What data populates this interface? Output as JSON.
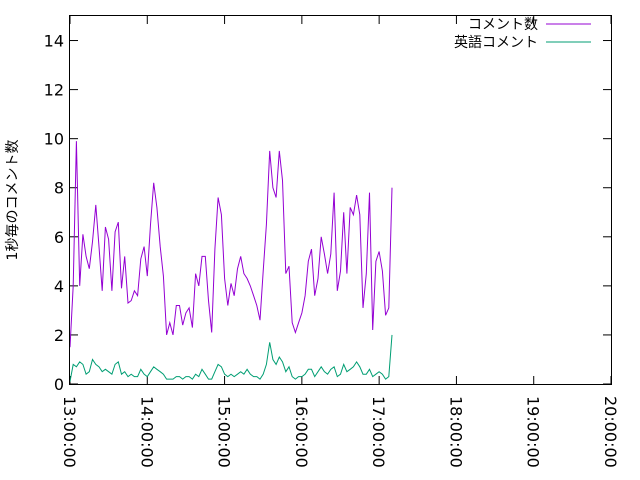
{
  "chart_data": {
    "type": "line",
    "ylabel": "1秒毎のコメント数",
    "xlabel": "",
    "ylim": [
      0,
      15
    ],
    "xlim": [
      "13:00:00",
      "20:00:00"
    ],
    "y_ticks": [
      "0",
      "2",
      "4",
      "6",
      "8",
      "10",
      "12",
      "14"
    ],
    "x_ticks": [
      "13:00:00",
      "14:00:00",
      "15:00:00",
      "16:00:00",
      "17:00:00",
      "18:00:00",
      "19:00:00",
      "20:00:00"
    ],
    "legend_position": "top-right",
    "grid": false,
    "series": [
      {
        "name": "コメント数",
        "color": "#9400d3",
        "points": [
          [
            "13:00:00",
            1.5
          ],
          [
            "13:02:30",
            4.0
          ],
          [
            "13:05:00",
            9.9
          ],
          [
            "13:07:30",
            4.0
          ],
          [
            "13:10:00",
            6.1
          ],
          [
            "13:12:30",
            5.2
          ],
          [
            "13:15:00",
            4.7
          ],
          [
            "13:17:30",
            5.8
          ],
          [
            "13:20:00",
            7.3
          ],
          [
            "13:22:30",
            5.6
          ],
          [
            "13:25:00",
            3.8
          ],
          [
            "13:27:30",
            6.4
          ],
          [
            "13:30:00",
            5.9
          ],
          [
            "13:32:30",
            3.8
          ],
          [
            "13:35:00",
            6.2
          ],
          [
            "13:37:30",
            6.6
          ],
          [
            "13:40:00",
            3.9
          ],
          [
            "13:42:30",
            5.2
          ],
          [
            "13:45:00",
            3.3
          ],
          [
            "13:47:30",
            3.4
          ],
          [
            "13:50:00",
            3.8
          ],
          [
            "13:52:30",
            3.6
          ],
          [
            "13:55:00",
            5.1
          ],
          [
            "13:57:30",
            5.6
          ],
          [
            "14:00:00",
            4.4
          ],
          [
            "14:02:30",
            6.5
          ],
          [
            "14:05:00",
            8.2
          ],
          [
            "14:07:30",
            7.2
          ],
          [
            "14:10:00",
            5.6
          ],
          [
            "14:12:30",
            4.4
          ],
          [
            "14:15:00",
            2.0
          ],
          [
            "14:17:30",
            2.5
          ],
          [
            "14:20:00",
            2.0
          ],
          [
            "14:22:30",
            3.2
          ],
          [
            "14:25:00",
            3.2
          ],
          [
            "14:27:30",
            2.4
          ],
          [
            "14:30:00",
            2.9
          ],
          [
            "14:32:30",
            3.1
          ],
          [
            "14:35:00",
            2.3
          ],
          [
            "14:37:30",
            4.5
          ],
          [
            "14:40:00",
            4.0
          ],
          [
            "14:42:30",
            5.2
          ],
          [
            "14:45:00",
            5.2
          ],
          [
            "14:47:30",
            3.4
          ],
          [
            "14:50:00",
            2.1
          ],
          [
            "14:52:30",
            5.5
          ],
          [
            "14:55:00",
            7.6
          ],
          [
            "14:57:30",
            6.9
          ],
          [
            "15:00:00",
            4.3
          ],
          [
            "15:02:30",
            3.2
          ],
          [
            "15:05:00",
            4.1
          ],
          [
            "15:07:30",
            3.6
          ],
          [
            "15:10:00",
            4.7
          ],
          [
            "15:12:30",
            5.2
          ],
          [
            "15:15:00",
            4.5
          ],
          [
            "15:17:30",
            4.3
          ],
          [
            "15:20:00",
            4.0
          ],
          [
            "15:22:30",
            3.6
          ],
          [
            "15:25:00",
            3.2
          ],
          [
            "15:27:30",
            2.6
          ],
          [
            "15:30:00",
            4.6
          ],
          [
            "15:32:30",
            6.5
          ],
          [
            "15:35:00",
            9.5
          ],
          [
            "15:37:30",
            8.0
          ],
          [
            "15:40:00",
            7.6
          ],
          [
            "15:42:30",
            9.5
          ],
          [
            "15:45:00",
            8.3
          ],
          [
            "15:47:30",
            4.5
          ],
          [
            "15:50:00",
            4.8
          ],
          [
            "15:52:30",
            2.5
          ],
          [
            "15:55:00",
            2.1
          ],
          [
            "15:57:30",
            2.5
          ],
          [
            "16:00:00",
            2.9
          ],
          [
            "16:02:30",
            3.6
          ],
          [
            "16:05:00",
            5.0
          ],
          [
            "16:07:30",
            5.5
          ],
          [
            "16:10:00",
            3.6
          ],
          [
            "16:12:30",
            4.3
          ],
          [
            "16:15:00",
            6.0
          ],
          [
            "16:17:30",
            5.3
          ],
          [
            "16:20:00",
            4.5
          ],
          [
            "16:22:30",
            5.3
          ],
          [
            "16:25:00",
            7.8
          ],
          [
            "16:27:30",
            3.8
          ],
          [
            "16:30:00",
            4.6
          ],
          [
            "16:32:30",
            7.0
          ],
          [
            "16:35:00",
            4.5
          ],
          [
            "16:37:30",
            7.2
          ],
          [
            "16:40:00",
            6.9
          ],
          [
            "16:42:30",
            7.7
          ],
          [
            "16:45:00",
            6.9
          ],
          [
            "16:47:30",
            3.1
          ],
          [
            "16:50:00",
            4.5
          ],
          [
            "16:52:30",
            7.8
          ],
          [
            "16:55:00",
            2.2
          ],
          [
            "16:57:30",
            5.0
          ],
          [
            "17:00:00",
            5.4
          ],
          [
            "17:02:30",
            4.6
          ],
          [
            "17:05:00",
            2.8
          ],
          [
            "17:07:30",
            3.1
          ],
          [
            "17:10:00",
            8.0
          ]
        ]
      },
      {
        "name": "英語コメント",
        "color": "#009e73",
        "points": [
          [
            "13:00:00",
            0.1
          ],
          [
            "13:02:30",
            0.8
          ],
          [
            "13:05:00",
            0.7
          ],
          [
            "13:07:30",
            0.9
          ],
          [
            "13:10:00",
            0.8
          ],
          [
            "13:12:30",
            0.4
          ],
          [
            "13:15:00",
            0.5
          ],
          [
            "13:17:30",
            1.0
          ],
          [
            "13:20:00",
            0.8
          ],
          [
            "13:22:30",
            0.7
          ],
          [
            "13:25:00",
            0.5
          ],
          [
            "13:27:30",
            0.6
          ],
          [
            "13:30:00",
            0.5
          ],
          [
            "13:32:30",
            0.4
          ],
          [
            "13:35:00",
            0.8
          ],
          [
            "13:37:30",
            0.9
          ],
          [
            "13:40:00",
            0.4
          ],
          [
            "13:42:30",
            0.5
          ],
          [
            "13:45:00",
            0.3
          ],
          [
            "13:47:30",
            0.4
          ],
          [
            "13:50:00",
            0.3
          ],
          [
            "13:52:30",
            0.3
          ],
          [
            "13:55:00",
            0.6
          ],
          [
            "13:57:30",
            0.4
          ],
          [
            "14:00:00",
            0.3
          ],
          [
            "14:02:30",
            0.5
          ],
          [
            "14:05:00",
            0.7
          ],
          [
            "14:07:30",
            0.6
          ],
          [
            "14:10:00",
            0.5
          ],
          [
            "14:12:30",
            0.4
          ],
          [
            "14:15:00",
            0.2
          ],
          [
            "14:17:30",
            0.2
          ],
          [
            "14:20:00",
            0.2
          ],
          [
            "14:22:30",
            0.3
          ],
          [
            "14:25:00",
            0.3
          ],
          [
            "14:27:30",
            0.2
          ],
          [
            "14:30:00",
            0.3
          ],
          [
            "14:32:30",
            0.3
          ],
          [
            "14:35:00",
            0.2
          ],
          [
            "14:37:30",
            0.4
          ],
          [
            "14:40:00",
            0.3
          ],
          [
            "14:42:30",
            0.6
          ],
          [
            "14:45:00",
            0.4
          ],
          [
            "14:47:30",
            0.2
          ],
          [
            "14:50:00",
            0.2
          ],
          [
            "14:52:30",
            0.5
          ],
          [
            "14:55:00",
            0.8
          ],
          [
            "14:57:30",
            0.7
          ],
          [
            "15:00:00",
            0.4
          ],
          [
            "15:02:30",
            0.3
          ],
          [
            "15:05:00",
            0.4
          ],
          [
            "15:07:30",
            0.3
          ],
          [
            "15:10:00",
            0.4
          ],
          [
            "15:12:30",
            0.5
          ],
          [
            "15:15:00",
            0.4
          ],
          [
            "15:17:30",
            0.6
          ],
          [
            "15:20:00",
            0.4
          ],
          [
            "15:22:30",
            0.3
          ],
          [
            "15:25:00",
            0.3
          ],
          [
            "15:27:30",
            0.2
          ],
          [
            "15:30:00",
            0.4
          ],
          [
            "15:32:30",
            0.8
          ],
          [
            "15:35:00",
            1.7
          ],
          [
            "15:37:30",
            1.0
          ],
          [
            "15:40:00",
            0.8
          ],
          [
            "15:42:30",
            1.1
          ],
          [
            "15:45:00",
            0.9
          ],
          [
            "15:47:30",
            0.5
          ],
          [
            "15:50:00",
            0.7
          ],
          [
            "15:52:30",
            0.3
          ],
          [
            "15:55:00",
            0.2
          ],
          [
            "15:57:30",
            0.3
          ],
          [
            "16:00:00",
            0.3
          ],
          [
            "16:02:30",
            0.4
          ],
          [
            "16:05:00",
            0.6
          ],
          [
            "16:07:30",
            0.6
          ],
          [
            "16:10:00",
            0.3
          ],
          [
            "16:12:30",
            0.5
          ],
          [
            "16:15:00",
            0.7
          ],
          [
            "16:17:30",
            0.5
          ],
          [
            "16:20:00",
            0.4
          ],
          [
            "16:22:30",
            0.6
          ],
          [
            "16:25:00",
            0.7
          ],
          [
            "16:27:30",
            0.3
          ],
          [
            "16:30:00",
            0.4
          ],
          [
            "16:32:30",
            0.8
          ],
          [
            "16:35:00",
            0.5
          ],
          [
            "16:37:30",
            0.6
          ],
          [
            "16:40:00",
            0.7
          ],
          [
            "16:42:30",
            0.9
          ],
          [
            "16:45:00",
            0.7
          ],
          [
            "16:47:30",
            0.4
          ],
          [
            "16:50:00",
            0.4
          ],
          [
            "16:52:30",
            0.6
          ],
          [
            "16:55:00",
            0.3
          ],
          [
            "16:57:30",
            0.4
          ],
          [
            "17:00:00",
            0.5
          ],
          [
            "17:02:30",
            0.4
          ],
          [
            "17:05:00",
            0.2
          ],
          [
            "17:07:30",
            0.3
          ],
          [
            "17:10:00",
            2.0
          ]
        ]
      }
    ]
  }
}
